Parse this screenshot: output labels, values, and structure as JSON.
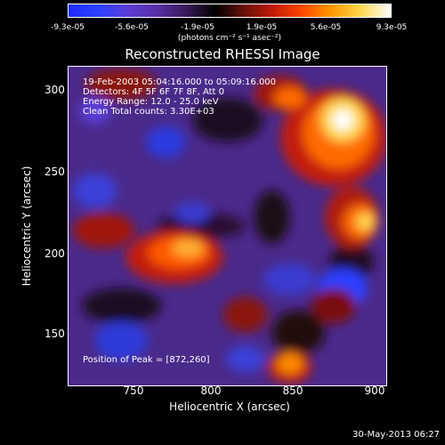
{
  "colorbar": {
    "tick_labels": [
      "-9.3e-05",
      "-5.6e-05",
      "-1.9e-05",
      "1.9e-05",
      "5.6e-05",
      "9.3e-05"
    ],
    "units_label": "(photons cm⁻² s⁻¹ asec⁻²)",
    "colors": [
      "#1f2bff",
      "#2a40ff",
      "#5a3dd8",
      "#5a2fa8",
      "#3a1a5a",
      "#000000",
      "#6a1008",
      "#c21a08",
      "#ff4a00",
      "#ff9a00",
      "#ffd850",
      "#ffffff"
    ]
  },
  "plot": {
    "title": "Reconstructed RHESSI Image",
    "info": [
      "19-Feb-2003 05:04:16.000 to 05:09:16.000",
      "Detectors: 4F 5F 6F 7F 8F, Att 0",
      "Energy Range: 12.0 - 25.0 keV",
      "Clean     Total counts: 3.30E+03"
    ],
    "peak_label": "Position of Peak = [872,260]",
    "x_axis_label": "Heliocentric X (arcsec)",
    "y_axis_label": "Heliocentric Y (arcsec)",
    "x_ticks": [
      "750",
      "800",
      "850",
      "900"
    ],
    "y_ticks": [
      "300",
      "250",
      "200",
      "150"
    ],
    "x_range": [
      710,
      902
    ],
    "y_range": [
      118,
      312
    ]
  },
  "footer": {
    "timestamp": "30-May-2013 06:27"
  }
}
